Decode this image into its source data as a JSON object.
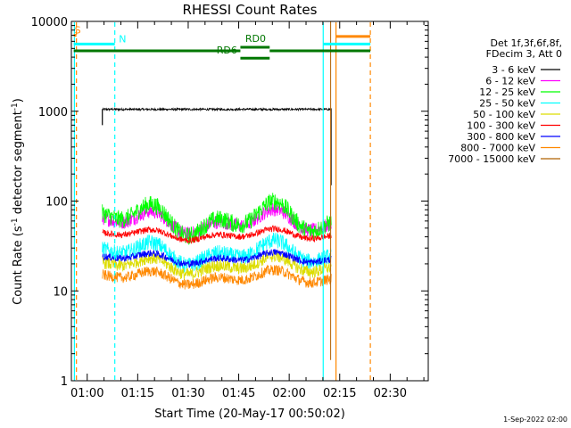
{
  "chart_data": {
    "type": "line",
    "title": "RHESSI Count Rates",
    "xlabel": "Start Time (20-May-17 00:50:02)",
    "ylabel_main": "Count Rate (s",
    "ylabel_sup1": "-1",
    "ylabel_mid": " detector segment",
    "ylabel_sup2": "-1",
    "ylabel_end": ")",
    "yscale": "log",
    "ylim": [
      1,
      10000
    ],
    "xlim_minutes": [
      -4.7,
      101.3
    ],
    "x_ticks": [
      {
        "minute": 0,
        "label": "01:00"
      },
      {
        "minute": 15,
        "label": "01:15"
      },
      {
        "minute": 30,
        "label": "01:30"
      },
      {
        "minute": 45,
        "label": "01:45"
      },
      {
        "minute": 60,
        "label": "02:00"
      },
      {
        "minute": 75,
        "label": "02:15"
      },
      {
        "minute": 90,
        "label": "02:30"
      }
    ],
    "y_ticks": [
      {
        "value": 1,
        "label": "1"
      },
      {
        "value": 10,
        "label": "10"
      },
      {
        "value": 100,
        "label": "100"
      },
      {
        "value": 1000,
        "label": "1000"
      },
      {
        "value": 10000,
        "label": "10000"
      }
    ],
    "legend_header": [
      "Det 1f,3f,6f,8f,",
      "FDecim 3, Att 0"
    ],
    "legend_placement": "right",
    "data_start_minute": 4.5,
    "data_end_minute": 72.5,
    "series": [
      {
        "name": "3 - 6 keV",
        "color": "#000000",
        "base": 1050,
        "amp": 0.0,
        "noise": 0.012,
        "tail_drop": 150
      },
      {
        "name": "6 - 12 keV",
        "color": "#ff00ff",
        "base": 58,
        "amp": 0.3,
        "noise": 0.08
      },
      {
        "name": "12 - 25 keV",
        "color": "#00ff00",
        "base": 62,
        "amp": 0.42,
        "noise": 0.1
      },
      {
        "name": "25 - 50 keV",
        "color": "#00ffff",
        "base": 26,
        "amp": 0.3,
        "noise": 0.09
      },
      {
        "name": "50 - 100 keV",
        "color": "#dddd00",
        "base": 19,
        "amp": 0.22,
        "noise": 0.07
      },
      {
        "name": "100 - 300 keV",
        "color": "#ff0000",
        "base": 42,
        "amp": 0.14,
        "noise": 0.035
      },
      {
        "name": "300 - 800 keV",
        "color": "#0000ff",
        "base": 23,
        "amp": 0.14,
        "noise": 0.04
      },
      {
        "name": "800 - 7000 keV",
        "color": "#ff8800",
        "base": 14,
        "amp": 0.18,
        "noise": 0.06
      },
      {
        "name": "7000 - 15000 keV",
        "color": "#b06000"
      }
    ],
    "vertical_lines": [
      {
        "minute": -3.8,
        "color": "#00ffff",
        "style": "solid"
      },
      {
        "minute": -3.2,
        "color": "#ff8800",
        "style": "dashed"
      },
      {
        "minute": 8.2,
        "color": "#00ffff",
        "style": "dashed"
      },
      {
        "minute": 70.1,
        "color": "#00ffff",
        "style": "solid"
      },
      {
        "minute": 73.9,
        "color": "#ff8800",
        "style": "solid"
      },
      {
        "minute": 84.1,
        "color": "#ff8800",
        "style": "dashed"
      }
    ],
    "flag_bars": [
      {
        "label": "S",
        "color": "#ff8800",
        "x1": -4.0,
        "x2": -3.2,
        "y": 7000,
        "label_minute": -2.8
      },
      {
        "label": "N",
        "color": "#00ffff",
        "x1": -4.0,
        "x2": 8.2,
        "y": 5600,
        "label_minute": 10.5
      },
      {
        "label": "",
        "color": "#00ffff",
        "x1": 70.1,
        "x2": 84.1,
        "y": 5600
      },
      {
        "label": "",
        "color": "#ff8800",
        "x1": 73.9,
        "x2": 84.1,
        "y": 6800
      },
      {
        "label": "",
        "color": "#007700",
        "x1": -4.0,
        "x2": 45.5,
        "y": 4700
      },
      {
        "label": "",
        "color": "#007700",
        "x1": 54.2,
        "x2": 84.1,
        "y": 4700
      },
      {
        "label": "RD0",
        "color": "#007700",
        "x1": 45.5,
        "x2": 54.2,
        "y": 5150,
        "label_minute": 50.0,
        "label_y": 5500
      },
      {
        "label": "RD6",
        "color": "#007700",
        "x1": 45.5,
        "x2": 54.2,
        "y": 3900,
        "label_minute": 41.5,
        "label_y": 4100
      }
    ],
    "tail_spike": {
      "minute": 73.9,
      "color": "#b06000",
      "from": 1.7,
      "to": 10000
    }
  },
  "footer_date": "1-Sep-2022 02:00"
}
